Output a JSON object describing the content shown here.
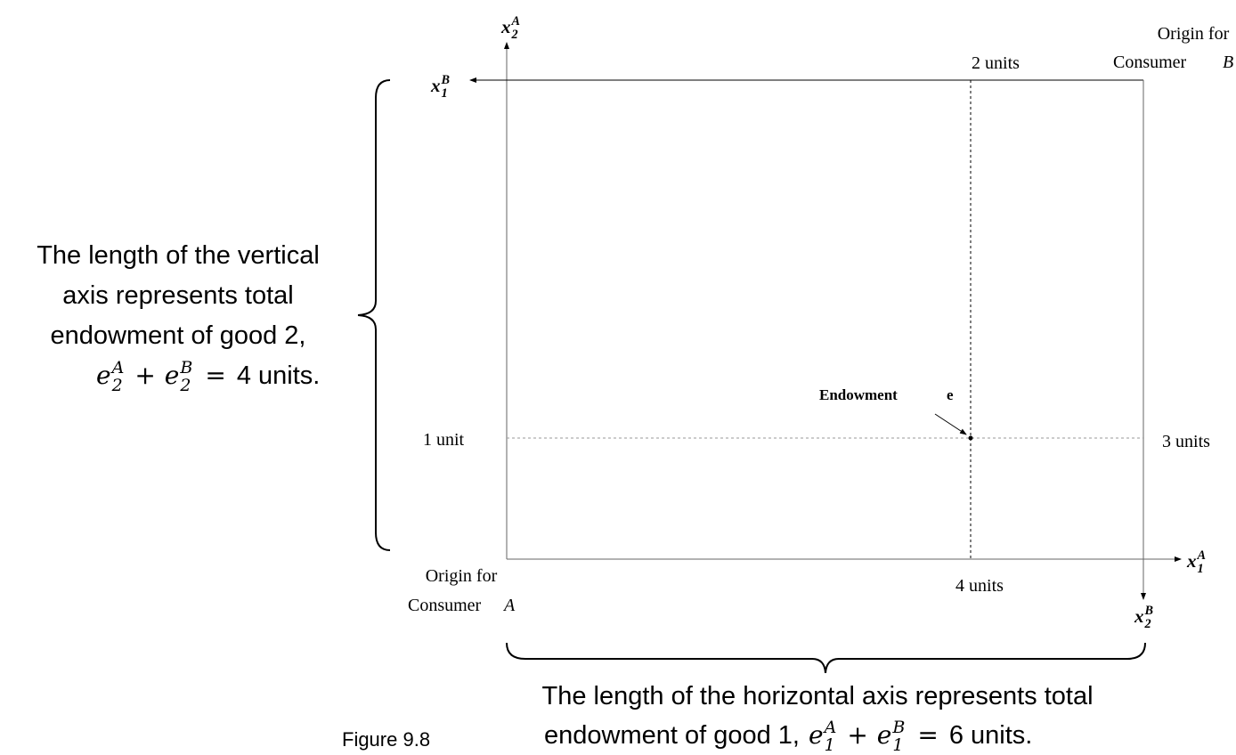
{
  "axes": {
    "x2A": {
      "base": "x",
      "sub": "2",
      "sup": "A"
    },
    "x1B": {
      "base": "x",
      "sub": "1",
      "sup": "B"
    },
    "x1A": {
      "base": "x",
      "sub": "1",
      "sup": "A"
    },
    "x2B": {
      "base": "x",
      "sub": "2",
      "sup": "B"
    }
  },
  "labels": {
    "top_units": "2 units",
    "origin_b": {
      "line1": "Origin for",
      "word": "Consumer",
      "letter": "B"
    },
    "origin_a": {
      "line1": "Origin for",
      "word": "Consumer",
      "letter": "A"
    },
    "left_units": "1 unit",
    "right_units": "3 units",
    "bottom_units": "4 units",
    "endowment": {
      "word": "Endowment",
      "letter": "e"
    }
  },
  "vertical_note": {
    "lines": [
      "The length of the vertical",
      "axis represents total",
      "endowment of good 2,"
    ],
    "formula": {
      "terms": [
        {
          "base": "e",
          "sub": "2",
          "sup": "A"
        },
        {
          "base": "e",
          "sub": "2",
          "sup": "B"
        }
      ],
      "plus": "+",
      "eq": "=",
      "rest": "4 units."
    }
  },
  "horizontal_note": {
    "line1": "The length of the horizontal axis represents total",
    "prefix": "endowment of good 1,",
    "formula": {
      "terms": [
        {
          "base": "e",
          "sub": "1",
          "sup": "A"
        },
        {
          "base": "e",
          "sub": "1",
          "sup": "B"
        }
      ],
      "plus": "+",
      "eq": "=",
      "rest": "6 units."
    }
  },
  "figure_label": "Figure 9.8"
}
